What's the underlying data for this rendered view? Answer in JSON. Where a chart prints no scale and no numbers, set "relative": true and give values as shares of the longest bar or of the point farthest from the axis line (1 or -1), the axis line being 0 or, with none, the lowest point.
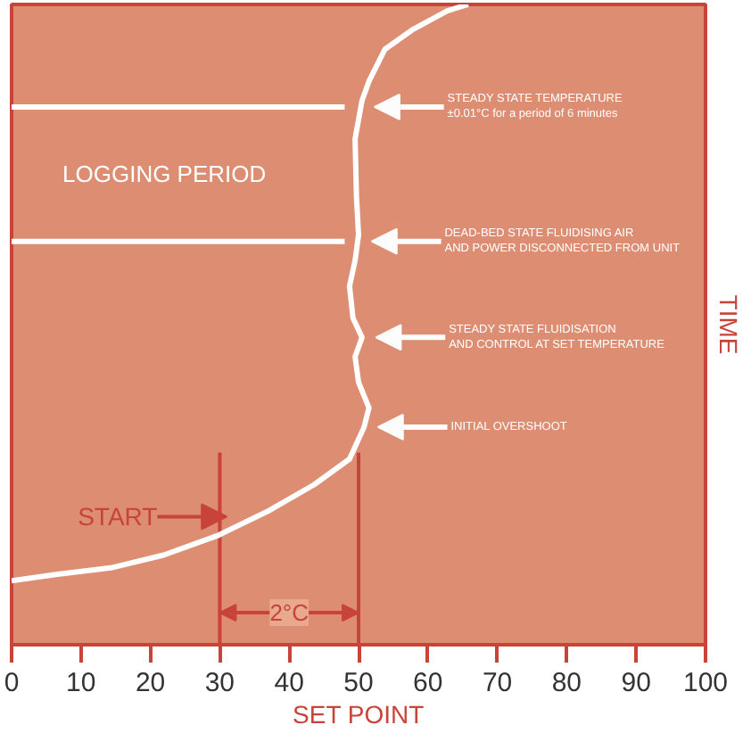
{
  "chart_data": {
    "type": "line",
    "relative": true,
    "xlabel": "SET POINT",
    "ylabel": "TIME",
    "x": [
      0,
      6.6,
      14.3,
      21.9,
      29.6,
      37.2,
      43.6,
      48.7,
      50.8,
      51.5,
      50.0,
      49.5,
      50.5,
      49.2,
      48.7,
      49.5,
      50.0,
      49.7,
      49.5,
      50.5,
      51.5,
      53.8,
      57.7,
      62.8,
      65.8
    ],
    "series": [
      {
        "color": "#ffffff",
        "values": [
          0.1,
          0.11,
          0.12,
          0.14,
          0.17,
          0.21,
          0.25,
          0.29,
          0.34,
          0.37,
          0.41,
          0.45,
          0.48,
          0.51,
          0.56,
          0.6,
          0.64,
          0.7,
          0.79,
          0.85,
          0.88,
          0.93,
          0.96,
          0.99,
          1.0
        ]
      }
    ],
    "xlim": [
      0,
      100
    ],
    "xticks": [
      0,
      10,
      20,
      30,
      40,
      50,
      60,
      70,
      80,
      90,
      100
    ],
    "tick_labels": "x",
    "grid": false,
    "ref_lines": [
      {
        "axis": "x",
        "value": 30,
        "color": "#c8433a"
      },
      {
        "axis": "x",
        "value": 50,
        "color": "#c8433a"
      },
      {
        "axis": "y",
        "value": 0.84,
        "label": "LOGGING PERIOD",
        "color": "#ffffff"
      },
      {
        "axis": "y",
        "value": 0.63,
        "color": "#ffffff"
      }
    ],
    "annotations": [
      {
        "text": "STEADY STATE TEMPERATURE\n±0.01°C for a period of 6 minutes",
        "x": 50.3,
        "y": 0.84
      },
      {
        "text": "DEAD-BED STATE FLUIDISING AIR\nAND POWER DISCONNECTED FROM UNIT",
        "x": 49.9,
        "y": 0.63
      },
      {
        "text": "STEADY STATE FLUIDISATION\nAND CONTROL AT SET TEMPERATURE",
        "x": 50.5,
        "y": 0.48
      },
      {
        "text": "INITIAL OVERSHOOT",
        "x": 50.8,
        "y": 0.34
      },
      {
        "text": "START",
        "x": 31,
        "y": 0.2
      },
      "2°C"
    ]
  }
}
